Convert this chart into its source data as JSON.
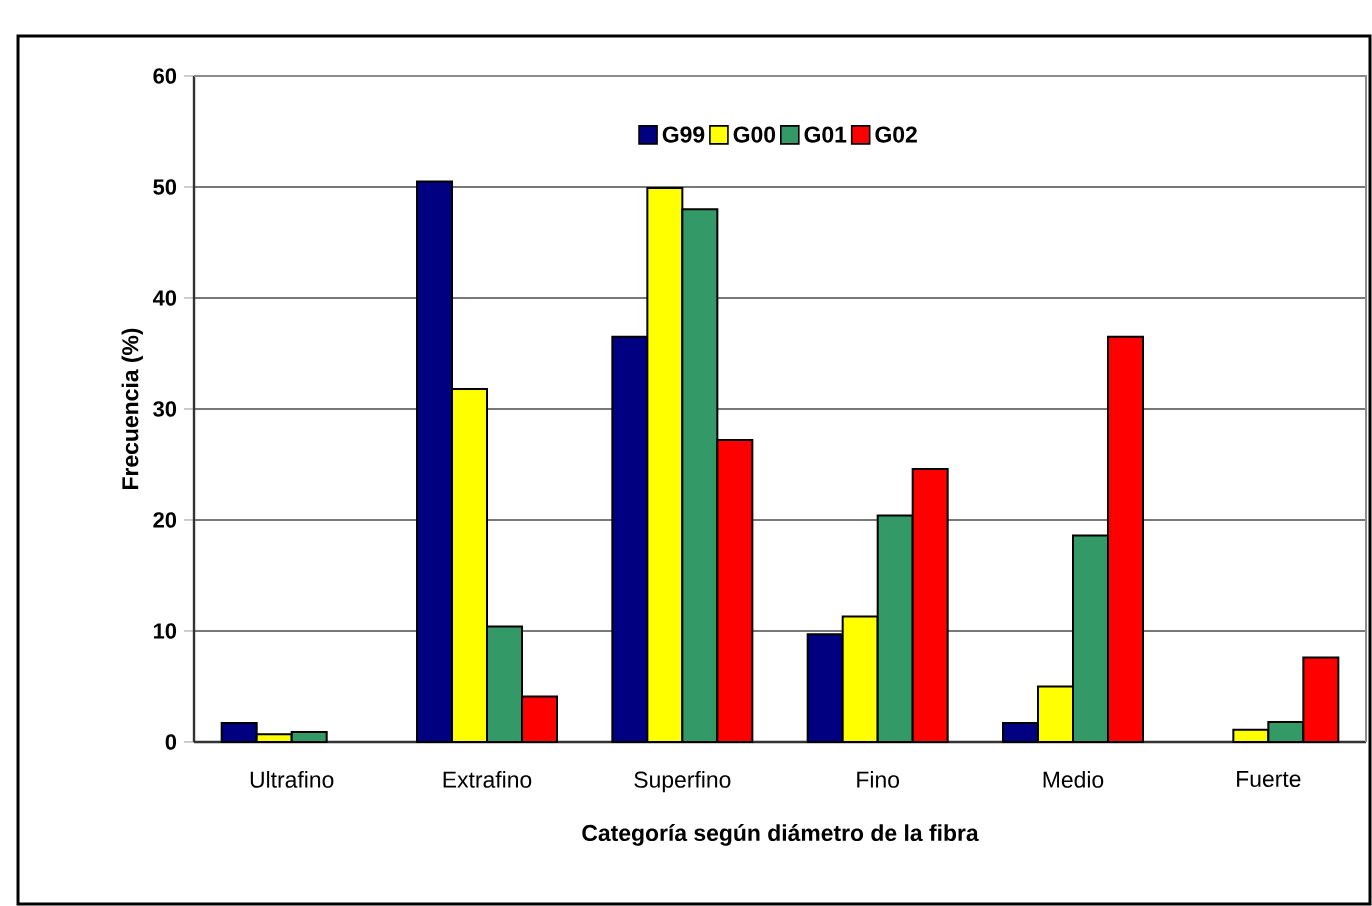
{
  "chart_data": {
    "type": "bar",
    "xlabel": "Categoría según diámetro de la fibra",
    "ylabel": "Frecuencia (%)",
    "categories": [
      "Ultrafino",
      "Extrafino",
      "Superfino",
      "Fino",
      "Medio",
      "Fuerte"
    ],
    "series": [
      {
        "name": "G99",
        "color": "#000080",
        "values": [
          1.7,
          50.5,
          36.5,
          9.7,
          1.7,
          null
        ]
      },
      {
        "name": "G00",
        "color": "#ffff00",
        "values": [
          0.7,
          31.8,
          49.9,
          11.3,
          5.0,
          1.1
        ]
      },
      {
        "name": "G01",
        "color": "#339966",
        "values": [
          0.9,
          10.4,
          48.0,
          20.4,
          18.6,
          1.8
        ]
      },
      {
        "name": "G02",
        "color": "#ff0000",
        "values": [
          null,
          4.1,
          27.2,
          24.6,
          36.5,
          7.6
        ]
      }
    ],
    "ylim": [
      0,
      60
    ],
    "yticks": [
      0,
      10,
      20,
      30,
      40,
      50,
      60
    ],
    "grid": "y",
    "legend": "top"
  }
}
